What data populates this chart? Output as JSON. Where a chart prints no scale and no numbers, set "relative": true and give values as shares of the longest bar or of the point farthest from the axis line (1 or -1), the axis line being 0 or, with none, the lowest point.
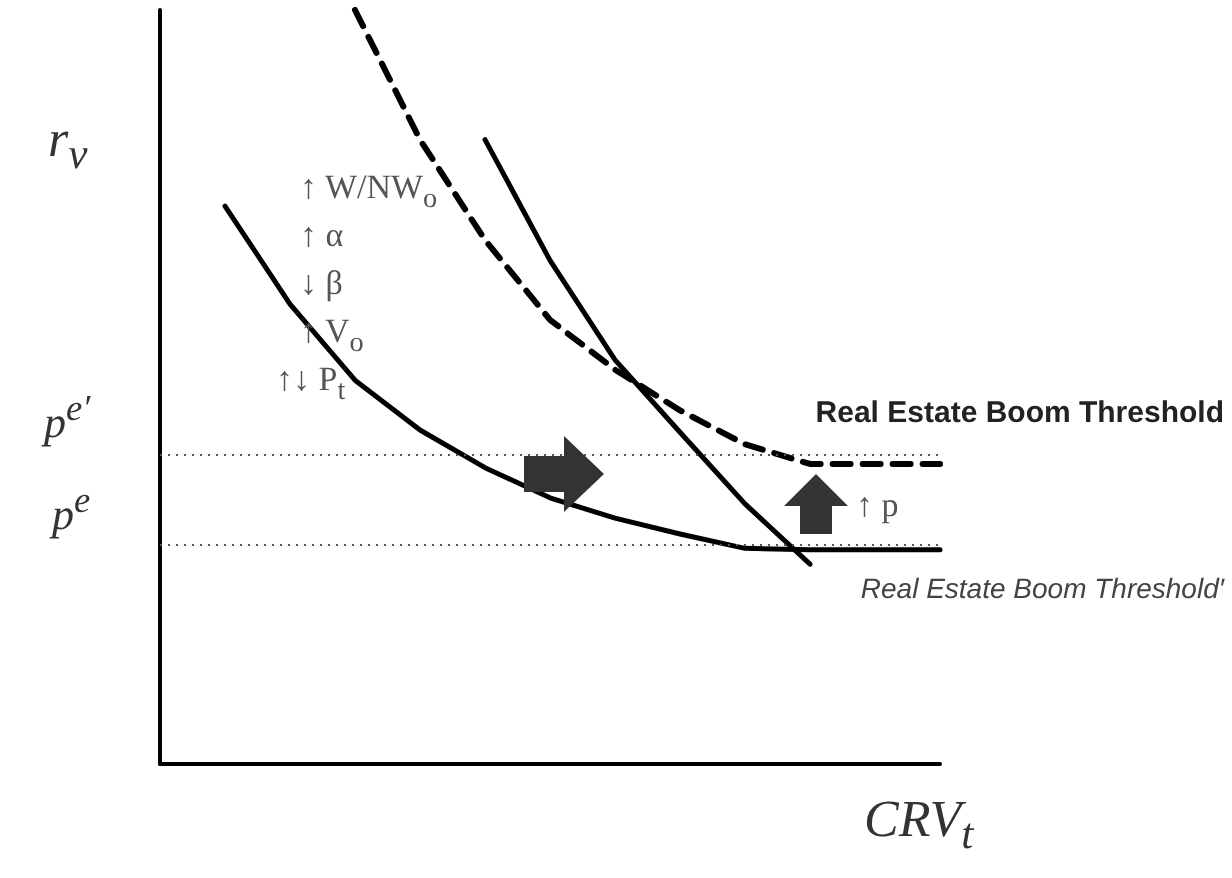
{
  "chart_data": {
    "type": "line",
    "relative": true,
    "xlabel": "CRV$_{t}$",
    "ylabel": "r$_{v}$",
    "grid": false,
    "categories": [
      null,
      null,
      null,
      null,
      null,
      null,
      null,
      null,
      null,
      null,
      null,
      null,
      null
    ],
    "series": [
      {
        "color": "#000000",
        "line_style": "solid",
        "values": [
          null,
          0.74,
          0.61,
          0.509,
          0.443,
          0.393,
          0.353,
          0.326,
          0.305,
          0.286,
          0.284,
          0.284,
          0.284
        ]
      },
      {
        "color": "#000000",
        "line_style": "solid",
        "values": [
          null,
          null,
          null,
          null,
          null,
          0.828,
          0.668,
          0.536,
          0.44,
          0.345,
          0.265,
          null,
          null
        ]
      },
      {
        "color": "#000000",
        "line_style": "dashed",
        "values": [
          null,
          null,
          null,
          1.0,
          0.828,
          0.695,
          0.589,
          0.523,
          0.469,
          0.424,
          0.398,
          0.398,
          0.398
        ]
      }
    ],
    "ref_lines": [
      {
        "axis": "y",
        "value": 0.408,
        "label": "Real Estate Boom Threshold",
        "line_style": "dotted",
        "color": "#555555"
      },
      {
        "axis": "y",
        "value": 0.292,
        "label": "Real Estate Boom Threshold′",
        "line_style": "dotted",
        "color": "#555555"
      }
    ],
    "annotations": [
      "↑ W/NW$_{o}$",
      "↑ α",
      "↓ β",
      "↑ V$_{o}$",
      "↑↓ P$_{t}$",
      "↑ p",
      "p$^{e′}$",
      "p$^{e}$"
    ]
  }
}
